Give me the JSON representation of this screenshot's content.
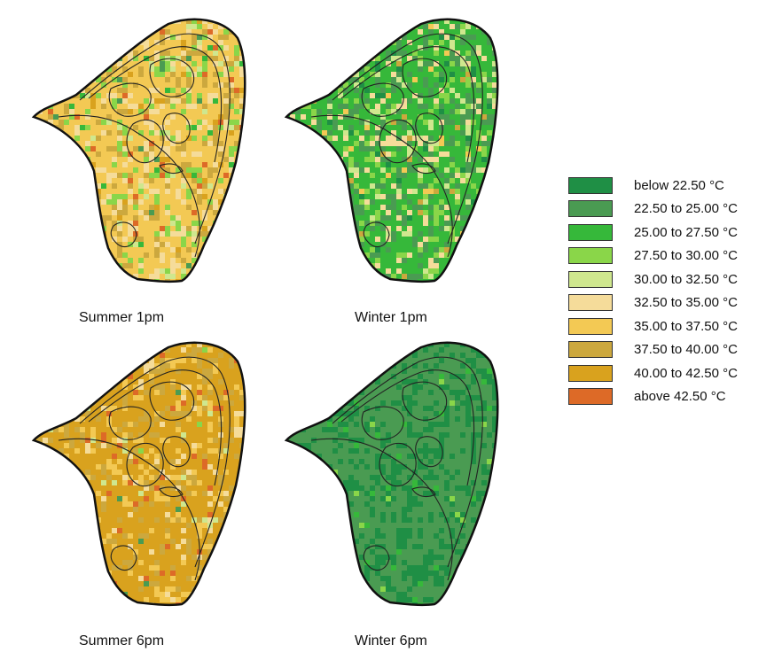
{
  "classes": [
    {
      "label": "below 22.50 °C",
      "color": "#1f8f45"
    },
    {
      "label": "22.50 to 25.00 °C",
      "color": "#4a9b52"
    },
    {
      "label": "25.00 to 27.50 °C",
      "color": "#36b83a"
    },
    {
      "label": "27.50 to 30.00 °C",
      "color": "#8ad649"
    },
    {
      "label": "30.00 to 32.50 °C",
      "color": "#cfe78e"
    },
    {
      "label": "32.50 to 35.00 °C",
      "color": "#f5dc9a"
    },
    {
      "label": "35.00 to 37.50 °C",
      "color": "#f3c954"
    },
    {
      "label": "37.50 to 40.00 °C",
      "color": "#cca83e"
    },
    {
      "label": "40.00 to 42.50 °C",
      "color": "#d9a21e"
    },
    {
      "label": "above 42.50 °C",
      "color": "#dd6a27"
    }
  ],
  "maps": [
    {
      "caption": "Summer 1pm",
      "base": 6,
      "weights": [
        0,
        0.02,
        0.03,
        0.18,
        0.06,
        0.28,
        0.08,
        0.26,
        0.06,
        0.03
      ]
    },
    {
      "caption": "Winter 1pm",
      "base": 2,
      "weights": [
        0.04,
        0.36,
        0.1,
        0.18,
        0.12,
        0.14,
        0.03,
        0.03,
        0,
        0
      ]
    },
    {
      "caption": "Summer 6pm",
      "base": 8,
      "weights": [
        0,
        0.01,
        0,
        0.01,
        0.03,
        0.12,
        0.2,
        0.28,
        0.3,
        0.05
      ]
    },
    {
      "caption": "Winter 6pm",
      "base": 1,
      "weights": [
        0.62,
        0.3,
        0.06,
        0.02,
        0,
        0,
        0,
        0,
        0,
        0
      ]
    }
  ]
}
